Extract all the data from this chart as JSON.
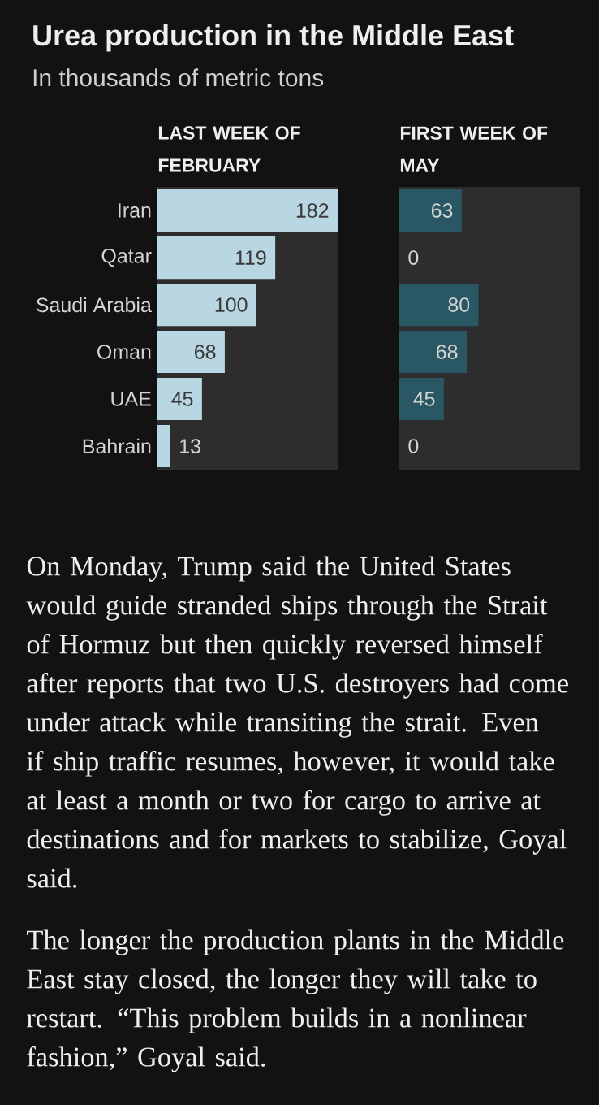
{
  "chart_data": [
    {
      "type": "bar",
      "orientation": "horizontal",
      "title": "Urea production in the Middle East",
      "subtitle": "In thousands of metric tons",
      "categories": [
        "Iran",
        "Qatar",
        "Saudi Arabia",
        "Oman",
        "UAE",
        "Bahrain"
      ],
      "series": [
        {
          "name": "LAST WEEK OF FEBRUARY",
          "color": "#b9d7e3",
          "values": [
            182,
            119,
            100,
            68,
            45,
            13
          ]
        }
      ],
      "xlim": [
        0,
        182
      ],
      "data_labels": true,
      "annotations": [
        "On Monday, Trump said the United States would guide stranded ships through the Strait of Hormuz but then quickly reversed himself after reports that two U.S. destroyers had come under attack while transiting the strait. Even if ship traffic resumes, however, it would take at least a month or two for cargo to arrive at destinations and for markets to stabilize, Goyal said.",
        "The longer the production plants in the Middle East stay closed, the longer they will take to restart. “This problem builds in a nonlinear fashion,” Goyal said."
      ]
    },
    {
      "type": "bar",
      "orientation": "horizontal",
      "categories": [
        null,
        null,
        null,
        null,
        null,
        null
      ],
      "series": [
        {
          "name": "FIRST WEEK OF MAY",
          "color": "#2a5764",
          "values": [
            63,
            0,
            80,
            68,
            45,
            0
          ]
        }
      ],
      "xlim": [
        0,
        182
      ],
      "data_labels": true
    }
  ]
}
